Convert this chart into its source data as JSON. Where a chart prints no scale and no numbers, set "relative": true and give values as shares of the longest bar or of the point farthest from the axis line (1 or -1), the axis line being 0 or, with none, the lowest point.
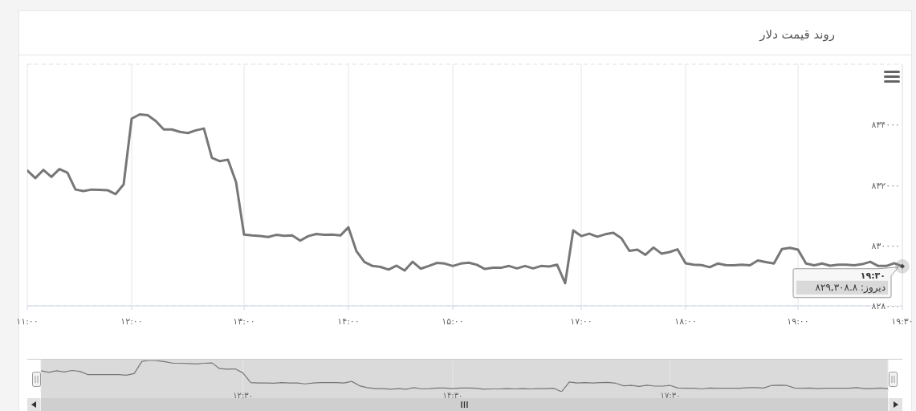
{
  "chart_data": [
    {
      "type": "line",
      "title": "روند قیمت دلار",
      "categories": [
        "۱۱:۰۰",
        null,
        null,
        null,
        null,
        null,
        null,
        null,
        null,
        null,
        null,
        null,
        null,
        "۱۲:۰۰",
        null,
        null,
        null,
        null,
        null,
        null,
        null,
        null,
        null,
        null,
        null,
        null,
        null,
        "۱۳:۰۰",
        null,
        null,
        null,
        null,
        null,
        null,
        null,
        null,
        null,
        null,
        null,
        null,
        "۱۴:۰۰",
        null,
        null,
        null,
        null,
        null,
        null,
        null,
        null,
        null,
        null,
        null,
        null,
        "۱۵:۰۰",
        null,
        null,
        null,
        null,
        null,
        null,
        null,
        null,
        null,
        null,
        null,
        null,
        null,
        null,
        null,
        "۱۷:۰۰",
        null,
        null,
        null,
        null,
        null,
        null,
        null,
        null,
        null,
        null,
        null,
        null,
        "۱۸:۰۰",
        null,
        null,
        null,
        null,
        null,
        null,
        null,
        null,
        null,
        null,
        null,
        null,
        null,
        "۱۹:۰۰",
        null,
        null,
        null,
        null,
        null,
        null,
        null,
        null,
        null,
        null,
        null,
        null,
        "۱۹:۳۰"
      ],
      "series": [
        {
          "color": "#777777",
          "values": [
            832480,
            832230,
            832500,
            832270,
            832530,
            832410,
            831850,
            831800,
            831850,
            831840,
            831830,
            831700,
            832020,
            834200,
            834340,
            834310,
            834120,
            833840,
            833840,
            833760,
            833720,
            833810,
            833870,
            832900,
            832790,
            832840,
            832100,
            830360,
            830330,
            830310,
            830280,
            830350,
            830320,
            830330,
            830160,
            830310,
            830380,
            830350,
            830360,
            830330,
            830600,
            829810,
            829450,
            829320,
            829290,
            829200,
            829330,
            829170,
            829460,
            829230,
            829320,
            829420,
            829400,
            829320,
            829400,
            829430,
            829360,
            829220,
            829260,
            829260,
            829320,
            829240,
            829320,
            829240,
            829320,
            829300,
            829360,
            828750,
            830500,
            830310,
            830390,
            830290,
            830370,
            830420,
            830240,
            829820,
            829860,
            829690,
            829930,
            829730,
            829780,
            829870,
            829410,
            829360,
            829350,
            829280,
            829400,
            829350,
            829340,
            829360,
            829340,
            829500,
            829450,
            829400,
            829880,
            829920,
            829860,
            829400,
            829340,
            829400,
            829330,
            829360,
            829360,
            829340,
            829380,
            829460,
            829320,
            829320,
            829410,
            829308.8
          ]
        }
      ],
      "ylim": [
        828000,
        836000
      ],
      "yticks": [
        {
          "value": 828000,
          "label": "۸۲۸۰۰۰"
        },
        {
          "value": 830000,
          "label": "۸۳۰۰۰۰"
        },
        {
          "value": 832000,
          "label": "۸۳۲۰۰۰"
        },
        {
          "value": 834000,
          "label": "۸۳۴۰۰۰"
        },
        {
          "value": 836000,
          "label": null
        }
      ],
      "grid": true,
      "annotations": [
        {
          "text": "۱۹:۳۰",
          "x": "۱۹:۳۰",
          "y": 829308.8
        },
        {
          "text": "دیروز: ۸۲۹,۳۰۸.۸",
          "x": "۱۹:۳۰",
          "y": 829308.8
        }
      ]
    },
    {
      "type": "line",
      "relative": true,
      "categories": [
        null,
        null,
        null,
        null,
        null,
        null,
        null,
        null,
        null,
        null,
        null,
        null,
        null,
        null,
        null,
        null,
        null,
        null,
        null,
        null,
        null,
        null,
        null,
        null,
        null,
        null,
        "۱۲:۳۰",
        null,
        null,
        null,
        null,
        null,
        null,
        null,
        null,
        null,
        null,
        null,
        null,
        null,
        null,
        null,
        null,
        null,
        null,
        null,
        null,
        null,
        null,
        null,
        null,
        null,
        null,
        "۱۴:۳۰",
        null,
        null,
        null,
        null,
        null,
        null,
        null,
        null,
        null,
        null,
        null,
        null,
        null,
        null,
        null,
        null,
        null,
        null,
        null,
        null,
        null,
        null,
        null,
        null,
        null,
        null,
        null,
        "۱۷:۳۰",
        null,
        null,
        null,
        null,
        null,
        null,
        null,
        null,
        null,
        null,
        null,
        null,
        null,
        null,
        null,
        null,
        null,
        null,
        null,
        null,
        null,
        null,
        null,
        null,
        null,
        null,
        null,
        null
      ],
      "series": [
        {
          "color": "#777777",
          "values": [
            0.67,
            0.62,
            0.67,
            0.63,
            0.68,
            0.65,
            0.55,
            0.55,
            0.55,
            0.55,
            0.55,
            0.53,
            0.58,
            0.97,
            1,
            0.99,
            0.96,
            0.91,
            0.91,
            0.9,
            0.89,
            0.91,
            0.92,
            0.74,
            0.72,
            0.73,
            0.6,
            0.29,
            0.28,
            0.28,
            0.27,
            0.29,
            0.28,
            0.28,
            0.25,
            0.28,
            0.29,
            0.29,
            0.29,
            0.28,
            0.33,
            0.19,
            0.13,
            0.1,
            0.1,
            0.08,
            0.1,
            0.08,
            0.13,
            0.09,
            0.1,
            0.12,
            0.12,
            0.1,
            0.12,
            0.12,
            0.11,
            0.08,
            0.09,
            0.09,
            0.1,
            0.09,
            0.1,
            0.09,
            0.1,
            0.1,
            0.11,
            0,
            0.31,
            0.28,
            0.29,
            0.28,
            0.29,
            0.3,
            0.27,
            0.19,
            0.2,
            0.17,
            0.21,
            0.18,
            0.18,
            0.2,
            0.12,
            0.11,
            0.11,
            0.09,
            0.12,
            0.11,
            0.11,
            0.11,
            0.11,
            0.13,
            0.13,
            0.12,
            0.2,
            0.21,
            0.2,
            0.12,
            0.11,
            0.12,
            0.1,
            0.11,
            0.11,
            0.11,
            0.11,
            0.13,
            0.1,
            0.1,
            0.12,
            0.1
          ]
        }
      ],
      "grid": "x",
      "tick_labels": "x"
    }
  ]
}
